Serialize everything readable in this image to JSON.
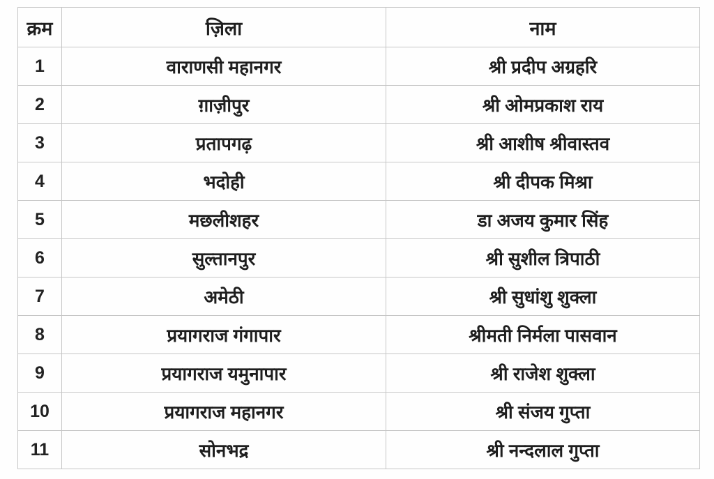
{
  "table": {
    "columns": [
      {
        "key": "serial",
        "label": "क्रम"
      },
      {
        "key": "district",
        "label": "ज़िला"
      },
      {
        "key": "name",
        "label": "नाम"
      }
    ],
    "rows": [
      {
        "serial": "1",
        "district": "वाराणसी महानगर",
        "name": "श्री प्रदीप अग्रहरि"
      },
      {
        "serial": "2",
        "district": "ग़ाज़ीपुर",
        "name": "श्री ओमप्रकाश राय"
      },
      {
        "serial": "3",
        "district": "प्रतापगढ़",
        "name": "श्री आशीष श्रीवास्तव"
      },
      {
        "serial": "4",
        "district": "भदोही",
        "name": "श्री दीपक मिश्रा"
      },
      {
        "serial": "5",
        "district": "मछलीशहर",
        "name": "डा अजय कुमार सिंह"
      },
      {
        "serial": "6",
        "district": "सुल्तानपुर",
        "name": "श्री सुशील त्रिपाठी"
      },
      {
        "serial": "7",
        "district": "अमेठी",
        "name": "श्री सुधांशु शुक्ला"
      },
      {
        "serial": "8",
        "district": "प्रयागराज गंगापार",
        "name": "श्रीमती निर्मला पासवान"
      },
      {
        "serial": "9",
        "district": "प्रयागराज यमुनापार",
        "name": "श्री राजेश शुक्ला"
      },
      {
        "serial": "10",
        "district": "प्रयागराज महानगर",
        "name": "श्री संजय गुप्ता"
      },
      {
        "serial": "11",
        "district": "सोनभद्र",
        "name": "श्री नन्दलाल गुप्ता"
      }
    ],
    "colors": {
      "border": "#c6c6c6",
      "text": "#1e1e1e",
      "background": "#ffffff"
    }
  }
}
